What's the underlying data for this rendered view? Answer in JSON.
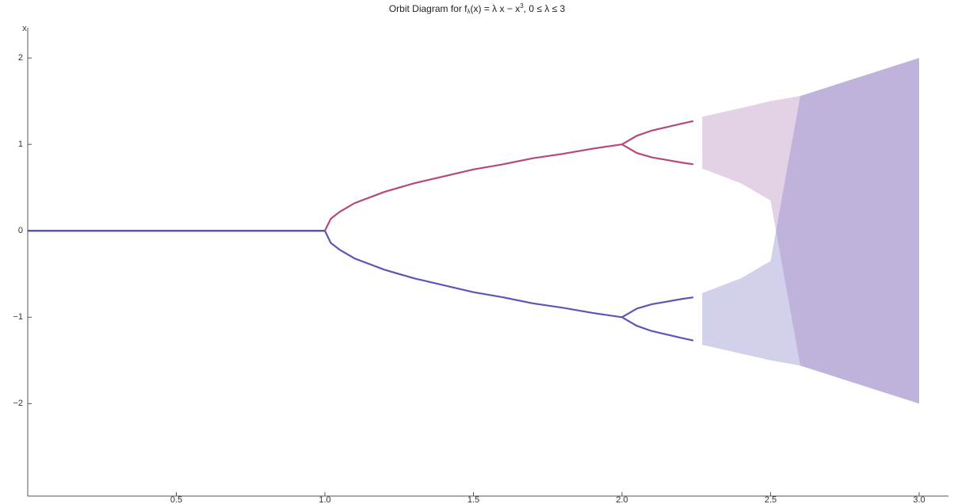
{
  "chart_data": {
    "type": "line",
    "title": [
      "Orbit Diagram for f",
      "λ",
      "(x) = λ x − x",
      "3",
      ", 0 ≤ λ ≤ 3"
    ],
    "y_label": "x",
    "xlim": [
      0,
      3.1
    ],
    "ylim": [
      -3.07,
      2.35
    ],
    "xticks": [
      0.5,
      {
        "value": 1,
        "label": "1.0"
      },
      1.5,
      {
        "value": 2,
        "label": "2.0"
      },
      2.5,
      {
        "value": 3,
        "label": "3.0"
      }
    ],
    "yticks": [
      {
        "value": -2,
        "label": "−2"
      },
      {
        "value": -1,
        "label": "−1"
      },
      0,
      1,
      2
    ],
    "series": [
      {
        "color": "#b07ab5",
        "x": [
          2.27,
          2.4,
          2.5,
          2.6,
          2.8,
          3.0
        ],
        "values": [
          1.32,
          1.42,
          1.5,
          1.56,
          1.78,
          2.0
        ],
        "lower": [
          0.72,
          0.55,
          0.35,
          -1.56,
          -1.78,
          -2.0
        ]
      },
      {
        "color": "#7a7ac8",
        "x": [
          2.27,
          2.4,
          2.5,
          2.6,
          2.8,
          3.0
        ],
        "values": [
          -0.72,
          -0.55,
          -0.35,
          1.56,
          1.78,
          2.0
        ],
        "lower": [
          -1.32,
          -1.42,
          -1.5,
          -1.56,
          -1.78,
          -2.0
        ]
      },
      {
        "color": "#4b4b9a",
        "x": [
          0,
          1
        ],
        "values": [
          0,
          0
        ]
      },
      {
        "color": "#b5487e",
        "x": [
          1,
          1.02,
          1.05,
          1.1,
          1.2,
          1.3,
          1.4,
          1.5,
          1.6,
          1.7,
          1.8,
          1.9,
          2.0
        ],
        "values": [
          0,
          0.14,
          0.22,
          0.32,
          0.45,
          0.55,
          0.63,
          0.71,
          0.77,
          0.84,
          0.89,
          0.95,
          1.0
        ]
      },
      {
        "color": "#5b57b5",
        "x": [
          1,
          1.02,
          1.05,
          1.1,
          1.2,
          1.3,
          1.4,
          1.5,
          1.6,
          1.7,
          1.8,
          1.9,
          2.0
        ],
        "values": [
          0,
          -0.14,
          -0.22,
          -0.32,
          -0.45,
          -0.55,
          -0.63,
          -0.71,
          -0.77,
          -0.84,
          -0.89,
          -0.95,
          -1.0
        ]
      },
      {
        "color": "#b5487e",
        "x": [
          2,
          2.05,
          2.1,
          2.15,
          2.2,
          2.24
        ],
        "values": [
          1,
          1.1,
          1.16,
          1.2,
          1.24,
          1.27
        ]
      },
      {
        "color": "#b5487e",
        "x": [
          2,
          2.05,
          2.1,
          2.15,
          2.2,
          2.24
        ],
        "values": [
          1,
          0.9,
          0.85,
          0.82,
          0.79,
          0.77
        ]
      },
      {
        "color": "#5b57b5",
        "x": [
          2,
          2.05,
          2.1,
          2.15,
          2.2,
          2.24
        ],
        "values": [
          -1,
          -1.1,
          -1.16,
          -1.2,
          -1.24,
          -1.27
        ]
      },
      {
        "color": "#5b57b5",
        "x": [
          2,
          2.05,
          2.1,
          2.15,
          2.2,
          2.24
        ],
        "values": [
          -1,
          -0.9,
          -0.85,
          -0.82,
          -0.79,
          -0.77
        ]
      }
    ]
  }
}
